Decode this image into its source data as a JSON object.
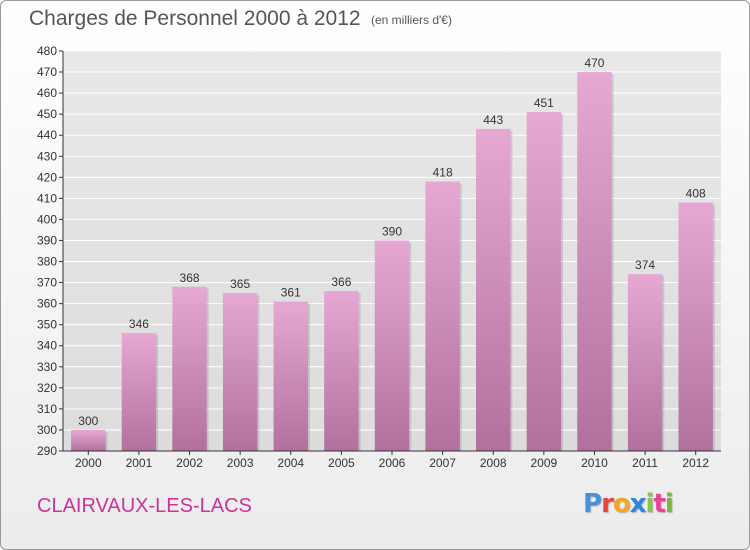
{
  "header": {
    "title": "Charges de Personnel 2000 à 2012",
    "subtitle": "(en milliers d'€)"
  },
  "footer": {
    "location": "CLAIRVAUX-LES-LACS",
    "logo_text": "Proxiti",
    "logo_colors": [
      "#4a90d9",
      "#e8463c",
      "#f5a623",
      "#2e86de",
      "#8bc34a",
      "#e84393",
      "#7cb342"
    ]
  },
  "colors": {
    "bar_top": "#e6a8d2",
    "bar_bottom": "#b2709f",
    "axis": "#333333",
    "grid": "#ffffff",
    "location": "#cc3399"
  },
  "chart_data": {
    "type": "bar",
    "title": "Charges de Personnel 2000 à 2012",
    "subtitle": "(en milliers d'€)",
    "xlabel": "",
    "ylabel": "",
    "categories": [
      "2000",
      "2001",
      "2002",
      "2003",
      "2004",
      "2005",
      "2006",
      "2007",
      "2008",
      "2009",
      "2010",
      "2011",
      "2012"
    ],
    "values": [
      300,
      346,
      368,
      365,
      361,
      366,
      390,
      418,
      443,
      451,
      470,
      374,
      408
    ],
    "ylim": [
      290,
      480
    ],
    "ytick_step": 10,
    "grid": true,
    "data_labels": true
  }
}
